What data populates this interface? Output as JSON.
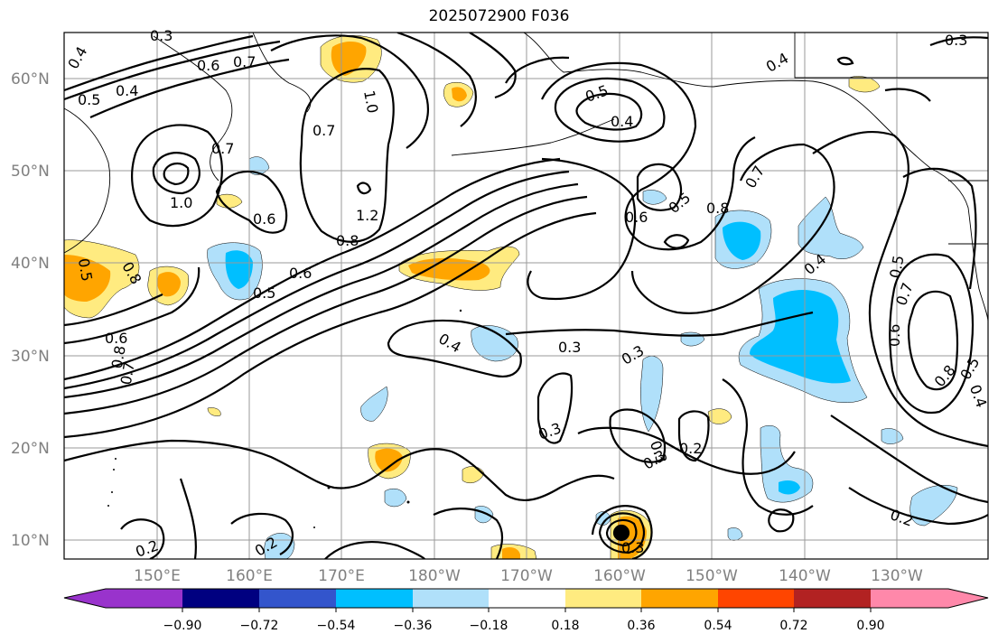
{
  "title": "2025072900 F036",
  "lat_ticks": [
    "10°N",
    "20°N",
    "30°N",
    "40°N",
    "50°N",
    "60°N"
  ],
  "lon_ticks": [
    "150°E",
    "160°E",
    "170°E",
    "180°W",
    "170°W",
    "160°W",
    "150°W",
    "140°W",
    "130°W"
  ],
  "colorbar": {
    "tick_labels": [
      "−0.90",
      "−0.72",
      "−0.54",
      "−0.36",
      "−0.18",
      "0.18",
      "0.36",
      "0.54",
      "0.72",
      "0.90"
    ],
    "colors": [
      "#9933cc",
      "#000080",
      "#3355cc",
      "#00bfff",
      "#b0e0fa",
      "#ffffff",
      "#ffeb80",
      "#ffa500",
      "#ff4500",
      "#b22222",
      "#ff88aa"
    ]
  },
  "contour_labels": [
    {
      "text": "0.3",
      "pos": "top-left"
    },
    {
      "text": "0.4"
    },
    {
      "text": "0.5"
    },
    {
      "text": "0.4"
    },
    {
      "text": "0.6"
    },
    {
      "text": "0.7"
    },
    {
      "text": "1.0"
    },
    {
      "text": "0.7"
    },
    {
      "text": "0.7"
    },
    {
      "text": "1.0"
    },
    {
      "text": "0.6"
    },
    {
      "text": "1.2"
    },
    {
      "text": "0.8"
    },
    {
      "text": "0.6"
    },
    {
      "text": "0.5"
    },
    {
      "text": "0.5"
    },
    {
      "text": "0.8"
    },
    {
      "text": "0.6"
    },
    {
      "text": "0.8"
    },
    {
      "text": "0.7"
    },
    {
      "text": "0.4"
    },
    {
      "text": "0.3"
    },
    {
      "text": "0.3"
    },
    {
      "text": "0.3"
    },
    {
      "text": "0.3"
    },
    {
      "text": "0.2"
    },
    {
      "text": "0.2"
    },
    {
      "text": "0.2"
    },
    {
      "text": "0.3"
    },
    {
      "text": "0.3"
    },
    {
      "text": "0.4"
    },
    {
      "text": "0.5"
    },
    {
      "text": "0.6"
    },
    {
      "text": "0.5"
    },
    {
      "text": "0.8"
    },
    {
      "text": "0.7"
    },
    {
      "text": "0.4"
    },
    {
      "text": "0.4"
    },
    {
      "text": "0.5"
    },
    {
      "text": "0.7"
    },
    {
      "text": "0.6"
    },
    {
      "text": "0.8"
    },
    {
      "text": "0.5"
    },
    {
      "text": "0.4"
    },
    {
      "text": "0.2"
    },
    {
      "text": "0.3"
    }
  ]
}
